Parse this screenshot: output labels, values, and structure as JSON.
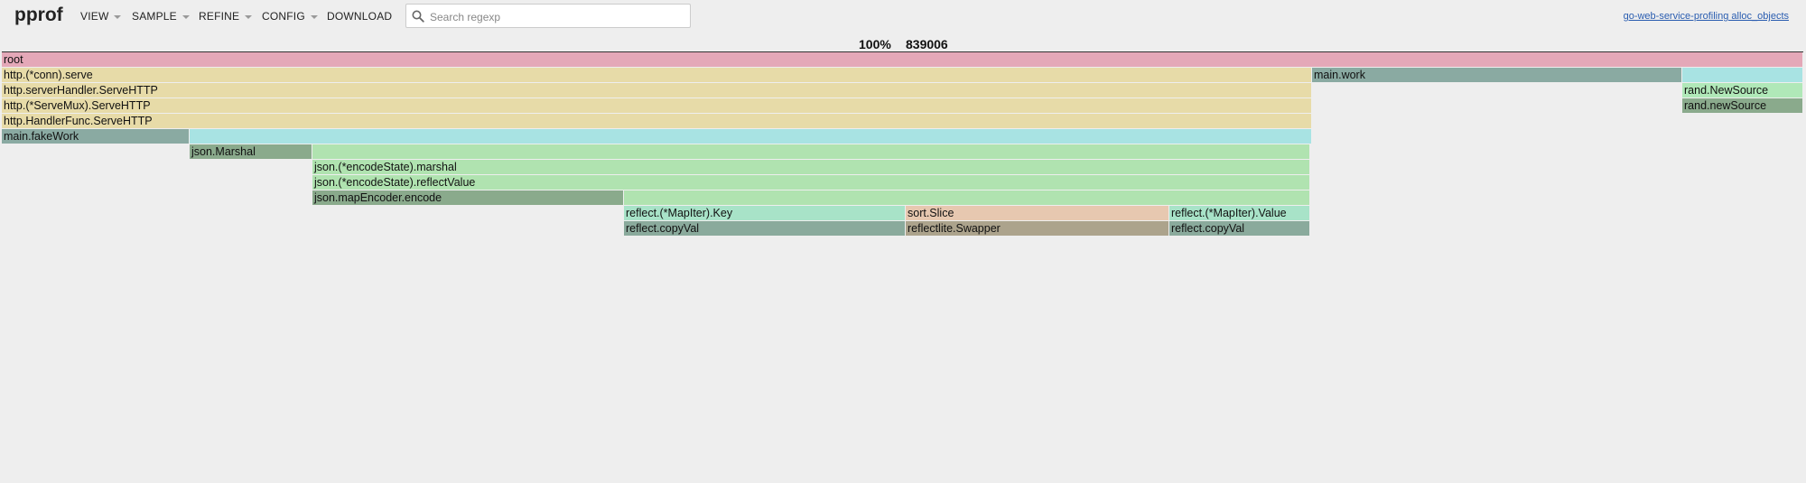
{
  "app": {
    "brand": "pprof"
  },
  "menu": [
    {
      "label": "VIEW"
    },
    {
      "label": "SAMPLE"
    },
    {
      "label": "REFINE"
    },
    {
      "label": "CONFIG"
    },
    {
      "label": "DOWNLOAD"
    }
  ],
  "search": {
    "placeholder": "Search regexp",
    "value": ""
  },
  "profile_link": "go-web-service-profiling alloc_objects",
  "summary": {
    "percent": "100%",
    "total": "839006"
  },
  "frames": [
    {
      "label": "root",
      "color": "#e4a8b8"
    },
    {
      "label": "http.(*conn).serve",
      "color": "#e7dba8"
    },
    {
      "label": "main.work",
      "color": "#8aaaa2"
    },
    {
      "label": "",
      "color": "#a8e3e3"
    },
    {
      "label": "http.serverHandler.ServeHTTP",
      "color": "#e7dba8"
    },
    {
      "label": "rand.NewSource",
      "color": "#b0e8b8"
    },
    {
      "label": "http.(*ServeMux).ServeHTTP",
      "color": "#e7dba8"
    },
    {
      "label": "rand.newSource",
      "color": "#8aaa8c"
    },
    {
      "label": "http.HandlerFunc.ServeHTTP",
      "color": "#e7dba8"
    },
    {
      "label": "main.fakeWork",
      "color": "#8aaaa2"
    },
    {
      "label": "",
      "color": "#a8e3e3"
    },
    {
      "label": "json.Marshal",
      "color": "#8aaa8c"
    },
    {
      "label": "",
      "color": "#b0e3b0"
    },
    {
      "label": "json.(*encodeState).marshal",
      "color": "#b0e3b0"
    },
    {
      "label": "json.(*encodeState).reflectValue",
      "color": "#b0e3b0"
    },
    {
      "label": "json.mapEncoder.encode",
      "color": "#8aaa8c"
    },
    {
      "label": "",
      "color": "#b0e3b0"
    },
    {
      "label": "reflect.(*MapIter).Key",
      "color": "#a8e3c8"
    },
    {
      "label": "sort.Slice",
      "color": "#e7c8b0"
    },
    {
      "label": "reflect.(*MapIter).Value",
      "color": "#a8e3c8"
    },
    {
      "label": "reflect.copyVal",
      "color": "#8aaa9c"
    },
    {
      "label": "reflectlite.Swapper",
      "color": "#aca38c"
    },
    {
      "label": "reflect.copyVal",
      "color": "#8aaa9c"
    }
  ]
}
